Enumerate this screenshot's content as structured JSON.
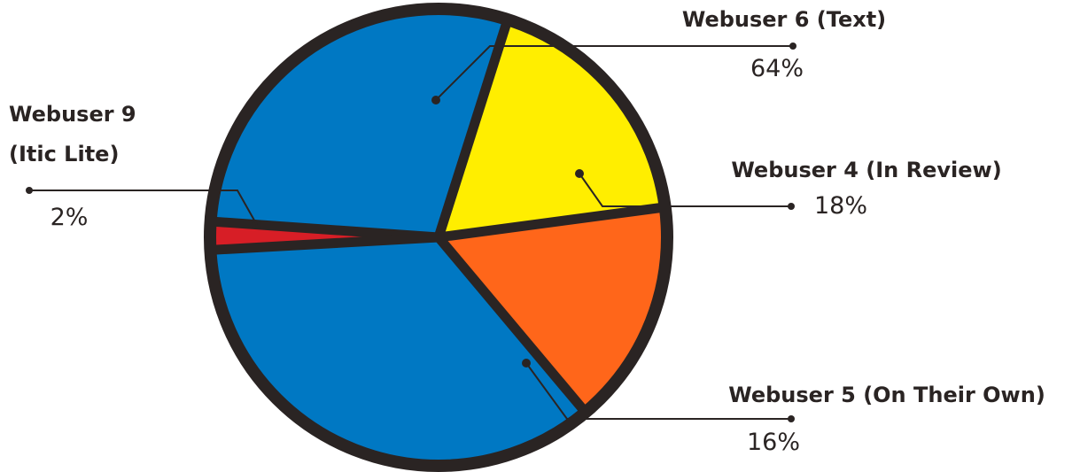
{
  "chart_data": {
    "type": "pie",
    "title": "",
    "slices": [
      {
        "label": "Webuser 6 (Text)",
        "percent_label": "64%",
        "value": 64,
        "color": "#0078c3"
      },
      {
        "label": "Webuser 4 (In Review)",
        "percent_label": "18%",
        "value": 18,
        "color": "#ffee00"
      },
      {
        "label": "Webuser 5 (On Their Own)",
        "percent_label": "16%",
        "value": 16,
        "color": "#ff661a"
      },
      {
        "label": "Webuser 9 (Itic Lite)",
        "label_lines": [
          "Webuser 9",
          "(Itic Lite)"
        ],
        "percent_label": "2%",
        "value": 2,
        "color": "#d71e26"
      }
    ],
    "outline_color": "#2a2423",
    "legend": "none"
  }
}
